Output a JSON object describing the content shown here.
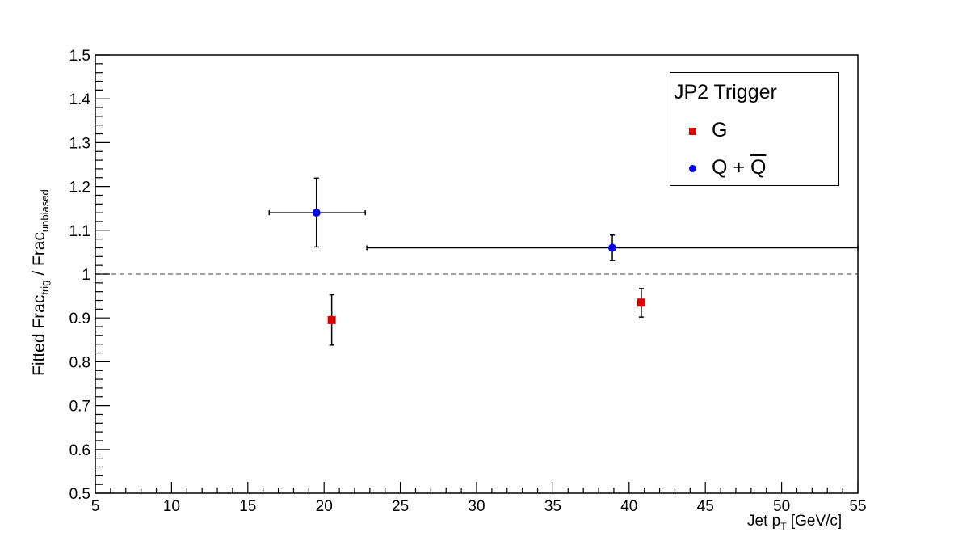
{
  "chart_data": {
    "type": "scatter",
    "title": "",
    "xlim": [
      5,
      55
    ],
    "ylim": [
      0.5,
      1.5
    ],
    "x_ticks": [
      "5",
      "10",
      "15",
      "20",
      "25",
      "30",
      "35",
      "40",
      "45",
      "50",
      "55"
    ],
    "y_ticks": [
      "0.5",
      "0.6",
      "0.7",
      "0.8",
      "0.9",
      "1",
      "1.1",
      "1.2",
      "1.3",
      "1.4",
      "1.5"
    ],
    "xlabel": {
      "pre": "Jet p",
      "sub": "T",
      "post": " [GeV/c]"
    },
    "ylabel": {
      "p1": "Fitted Frac",
      "s1": "trig",
      "p2": " / Frac",
      "s2": "unbiased"
    },
    "reference_line": {
      "y": 1.0,
      "style": "dashed",
      "color": "#808080"
    },
    "legend": {
      "title": "JP2 Trigger",
      "placement": "top-right",
      "entries": [
        {
          "label": "G",
          "marker": "square",
          "color": "#dd0000"
        },
        {
          "label_pre": "Q + ",
          "label_bar": "Q",
          "marker": "circle",
          "color": "#0000ee"
        }
      ]
    },
    "series": [
      {
        "legend_index": 0,
        "marker": "square",
        "color": "#dd0000",
        "points": [
          {
            "x": 20.5,
            "y": 0.895,
            "ylo": 0.838,
            "yhi": 0.953,
            "xlo": 20.5,
            "xhi": 20.5
          },
          {
            "x": 40.8,
            "y": 0.935,
            "ylo": 0.902,
            "yhi": 0.967,
            "xlo": 40.8,
            "xhi": 40.8
          }
        ]
      },
      {
        "legend_index": 1,
        "marker": "circle",
        "color": "#0000ee",
        "points": [
          {
            "x": 19.5,
            "y": 1.14,
            "ylo": 1.062,
            "yhi": 1.219,
            "xlo": 16.4,
            "xhi": 22.7
          },
          {
            "x": 38.9,
            "y": 1.06,
            "ylo": 1.031,
            "yhi": 1.089,
            "xlo": 22.8,
            "xhi": 55.0
          }
        ]
      }
    ]
  }
}
